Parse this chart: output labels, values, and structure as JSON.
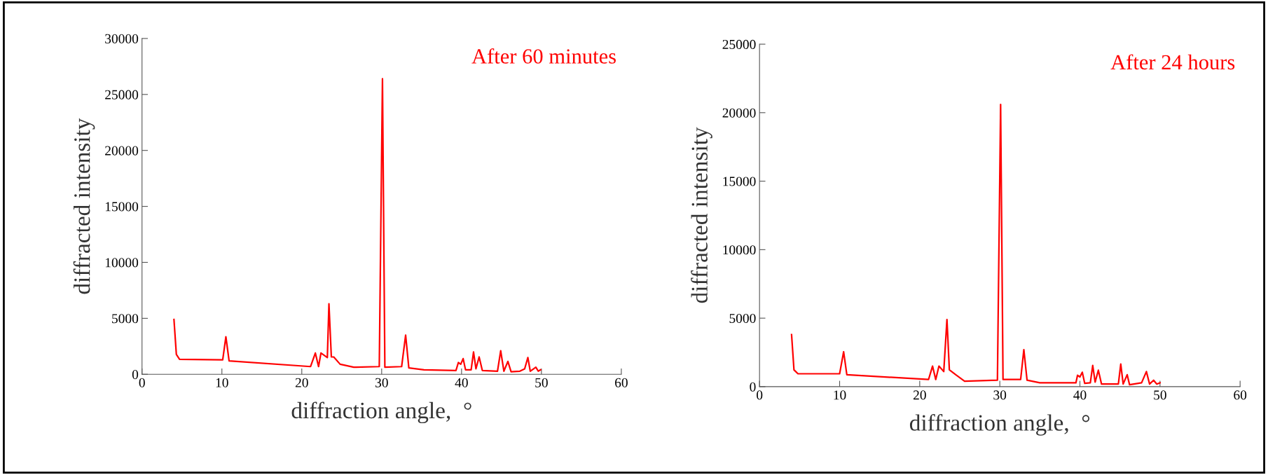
{
  "chart_data": [
    {
      "type": "line",
      "xlabel": "diffraction angle,  °",
      "ylabel": "diffracted intensity",
      "annotations": [
        "After 60 minutes"
      ],
      "xlim": [
        0,
        60
      ],
      "xticks": [
        0,
        10,
        20,
        30,
        40,
        50,
        60
      ],
      "ylim": [
        0,
        30000
      ],
      "yticks": [
        0,
        5000,
        10000,
        15000,
        20000,
        25000,
        30000
      ],
      "grid": false,
      "legend": false,
      "series": [
        {
          "color": "#ff0000",
          "x": [
            4.0,
            4.3,
            4.7,
            10.1,
            10.5,
            10.9,
            21.1,
            21.7,
            22.1,
            22.4,
            23.2,
            23.4,
            23.7,
            24.0,
            24.8,
            26.5,
            29.7,
            30.1,
            30.4,
            32.5,
            33.0,
            33.4,
            35.3,
            39.3,
            39.6,
            39.9,
            40.2,
            40.5,
            41.2,
            41.5,
            41.8,
            42.2,
            42.6,
            44.5,
            44.9,
            45.3,
            45.8,
            46.2,
            47.3,
            47.9,
            48.3,
            48.6,
            49.3,
            49.6,
            49.9
          ],
          "values": [
            4900,
            1770,
            1340,
            1290,
            3350,
            1200,
            690,
            1900,
            690,
            1900,
            1500,
            6300,
            1550,
            1550,
            900,
            630,
            690,
            26400,
            630,
            690,
            3500,
            570,
            400,
            340,
            1050,
            900,
            1400,
            400,
            400,
            2000,
            490,
            1550,
            340,
            280,
            2100,
            280,
            1150,
            230,
            280,
            490,
            1500,
            280,
            630,
            280,
            400
          ]
        }
      ]
    },
    {
      "type": "line",
      "xlabel": "diffraction angle,  °",
      "ylabel": "diffracted intensity",
      "annotations": [
        "After 24 hours"
      ],
      "xlim": [
        0,
        60
      ],
      "xticks": [
        0,
        10,
        20,
        30,
        40,
        50,
        60
      ],
      "ylim": [
        0,
        25000
      ],
      "yticks": [
        0,
        5000,
        10000,
        15000,
        20000,
        25000
      ],
      "grid": false,
      "legend": false,
      "series": [
        {
          "color": "#ff0000",
          "x": [
            4.0,
            4.3,
            4.8,
            10.0,
            10.5,
            10.9,
            21.1,
            21.6,
            22.0,
            22.4,
            23.0,
            23.4,
            23.7,
            24.5,
            25.6,
            29.7,
            30.1,
            30.4,
            32.6,
            33.0,
            33.4,
            35.0,
            39.5,
            39.7,
            40.0,
            40.3,
            40.6,
            41.3,
            41.6,
            41.9,
            42.3,
            42.7,
            44.8,
            45.1,
            45.4,
            45.9,
            46.2,
            47.7,
            48.3,
            48.7,
            49.2,
            49.6,
            50.0
          ],
          "values": [
            3800,
            1230,
            940,
            940,
            2550,
            870,
            520,
            1500,
            520,
            1500,
            1100,
            4900,
            1230,
            870,
            400,
            470,
            20600,
            520,
            520,
            2700,
            470,
            280,
            280,
            830,
            710,
            1050,
            240,
            280,
            1550,
            330,
            1200,
            190,
            190,
            1650,
            190,
            870,
            140,
            280,
            1100,
            190,
            470,
            190,
            280
          ]
        }
      ]
    }
  ]
}
